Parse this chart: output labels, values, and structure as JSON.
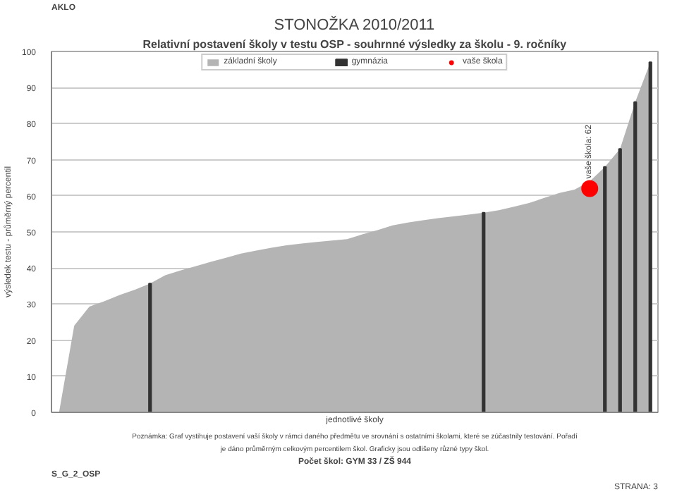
{
  "chart_data": {
    "type": "area",
    "title": "STONOŽKA 2010/2011",
    "subtitle": "Relativní postavení školy v testu OSP - souhrnné výsledky za školu - 9. ročníky",
    "xlabel": "jednotlivé školy",
    "ylabel": "výsledek testu - průměrný percentil",
    "categories": [
      null,
      null,
      null,
      null,
      null,
      null,
      null,
      null,
      null,
      null,
      null,
      null,
      null,
      null,
      null,
      null,
      null,
      null,
      null,
      null,
      null,
      null,
      null,
      null,
      null,
      null,
      null,
      null,
      null,
      null,
      null,
      null,
      null,
      null,
      null,
      null,
      null,
      null,
      null,
      null
    ],
    "ylim": [
      0,
      100
    ],
    "yticks": [
      0,
      10,
      20,
      30,
      40,
      50,
      60,
      70,
      80,
      90,
      100
    ],
    "grid": "y",
    "legend": "top",
    "series": [
      {
        "name": "základní školy",
        "color": "#b4b4b4",
        "values": [
          0,
          24,
          29.3,
          30.8,
          32.5,
          34,
          35.7,
          38,
          39.3,
          40.5,
          41.7,
          42.8,
          44,
          44.8,
          45.6,
          46.3,
          46.8,
          47.2,
          47.6,
          48,
          49.3,
          50.5,
          51.8,
          52.6,
          53.2,
          53.8,
          54.3,
          54.8,
          55.3,
          56,
          57,
          58,
          59.4,
          60.8,
          61.7,
          64,
          68,
          73,
          86,
          97
        ]
      },
      {
        "name": "gymnázia",
        "type": "bar",
        "color": "#333333",
        "values": [
          null,
          null,
          null,
          null,
          null,
          null,
          35.7,
          null,
          null,
          null,
          null,
          null,
          null,
          null,
          null,
          null,
          null,
          null,
          null,
          null,
          null,
          null,
          null,
          null,
          null,
          null,
          null,
          null,
          55.3,
          null,
          null,
          null,
          null,
          null,
          null,
          null,
          68,
          73,
          86,
          97
        ]
      },
      {
        "name": "vaše škola",
        "type": "scatter",
        "color": "#ff0000",
        "marker": "circle",
        "values": [
          null,
          null,
          null,
          null,
          null,
          null,
          null,
          null,
          null,
          null,
          null,
          null,
          null,
          null,
          null,
          null,
          null,
          null,
          null,
          null,
          null,
          null,
          null,
          null,
          null,
          null,
          null,
          null,
          null,
          null,
          null,
          null,
          null,
          null,
          null,
          62,
          null,
          null,
          null,
          null
        ]
      }
    ],
    "annotations": [
      "AKLO",
      "Poznámka: Graf vystihuje postavení vaší školy v rámci daného předmětu ve srovnání s ostatními školami, které se zúčastnily testování. Pořadí je dáno průměrným celkovým percentilem škol. Graficky jsou odlišeny různé typy škol.",
      "S_G_2_OSP",
      "Počet škol: GYM 33 / ZŠ 944",
      "STRANA: 3",
      {
        "text": "vaše škola: 62",
        "y": 62
      }
    ]
  }
}
